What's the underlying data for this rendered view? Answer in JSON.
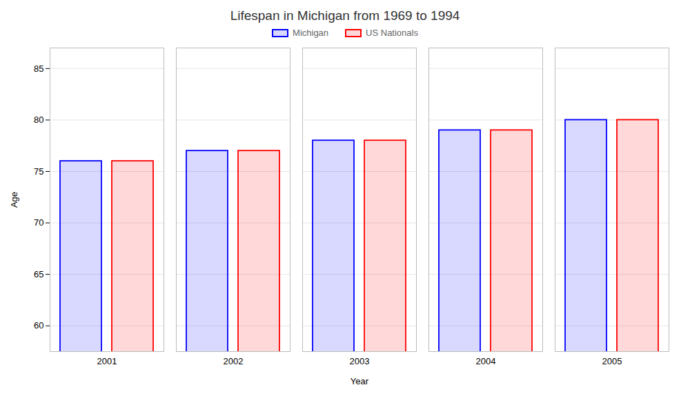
{
  "chart_data": {
    "type": "bar",
    "title": "Lifespan in Michigan from 1969 to 1994",
    "xlabel": "Year",
    "ylabel": "Age",
    "categories": [
      2001,
      2002,
      2003,
      2004,
      2005
    ],
    "series": [
      {
        "name": "Michigan",
        "color": "#0000ff",
        "values": [
          76,
          77,
          78,
          79,
          80
        ]
      },
      {
        "name": "US Nationals",
        "color": "#ff0000",
        "values": [
          76,
          77,
          78,
          79,
          80
        ]
      }
    ],
    "ylim": [
      57.5,
      87
    ],
    "yticks": [
      60,
      65,
      70,
      75,
      80,
      85
    ],
    "grid": true,
    "legend": "top"
  }
}
